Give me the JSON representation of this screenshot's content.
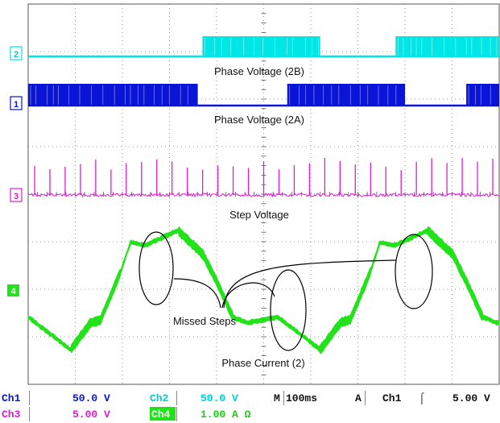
{
  "chart_data": {
    "type": "line",
    "title": "",
    "grid": true,
    "divisions": {
      "x": 10,
      "y": 8
    },
    "channels": [
      {
        "id": "2",
        "marker": "2",
        "name": "Phase Voltage (2B)",
        "color": "#00e5e5",
        "kind": "pwm",
        "segments": [
          [
            0,
            0.37,
            "low"
          ],
          [
            0.37,
            0.62,
            "high"
          ],
          [
            0.62,
            0.78,
            "low"
          ],
          [
            0.78,
            1.0,
            "high"
          ]
        ]
      },
      {
        "id": "1",
        "marker": "1",
        "name": "Phase Voltage (2A)",
        "color": "#0a14d6",
        "kind": "pwm",
        "segments": [
          [
            0,
            0.36,
            "high"
          ],
          [
            0.36,
            0.55,
            "low"
          ],
          [
            0.55,
            0.8,
            "high"
          ],
          [
            0.8,
            0.93,
            "low"
          ],
          [
            0.93,
            1.0,
            "high"
          ]
        ]
      },
      {
        "id": "3",
        "marker": "3",
        "name": "Step Voltage",
        "color": "#e21ad3",
        "kind": "pulses",
        "pulse_count": 31
      },
      {
        "id": "4",
        "marker": "4",
        "name": "Phase Current (2)",
        "color": "#22e31a",
        "kind": "current",
        "period_fraction": 0.53
      }
    ],
    "annotations": [
      {
        "text": "Missed Steps",
        "callouts": 3
      }
    ]
  },
  "status": {
    "ch1": "Ch1",
    "ch1_scale": "50.0 V",
    "ch2": "Ch2",
    "ch2_scale": "50.0 V",
    "time_mode": "M",
    "timebase": "100ms",
    "acq": "A",
    "trig_src": "Ch1",
    "trig_slope": "⌠",
    "trig_level": "5.00 V",
    "ch3": "Ch3",
    "ch3_scale": "5.00 V",
    "ch4": "Ch4",
    "ch4_scale": "1.00 A Ω"
  },
  "colors": {
    "ch1": "#0a14d6",
    "ch2": "#00e5e5",
    "ch3": "#e21ad3",
    "ch4": "#22e31a",
    "grid": "#555555"
  }
}
